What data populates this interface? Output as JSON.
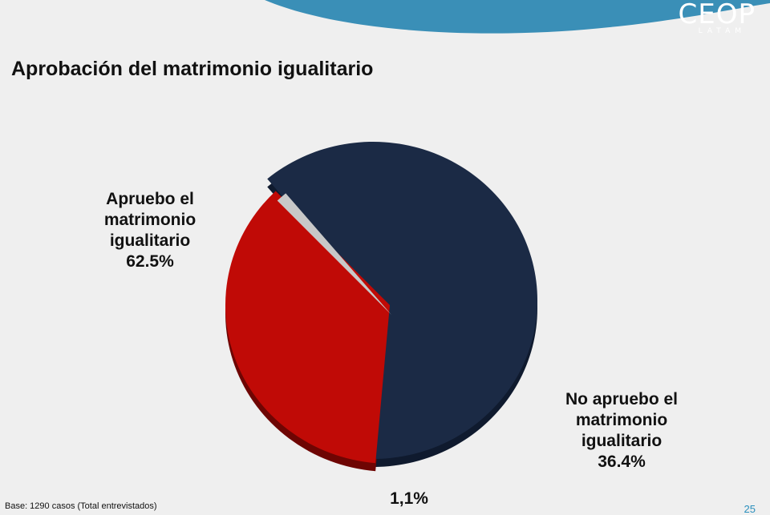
{
  "header": {
    "logo_text": "CEOP",
    "logo_subtext": "LATAM",
    "wave_color": "#3a8fb7"
  },
  "title": "Aprobación del matrimonio igualitario",
  "footer": {
    "base_text": "Base: 1290 casos (Total entrevistados)",
    "page_number": "25"
  },
  "labels": {
    "approve": [
      "Apruebo el",
      "matrimonio",
      "igualitario",
      "62.5%"
    ],
    "disapprove": [
      "No apruebo el",
      "matrimonio",
      "igualitario",
      "36.4%"
    ],
    "other": "1,1%"
  },
  "chart_data": {
    "type": "pie",
    "title": "Aprobación del matrimonio igualitario",
    "exploded": true,
    "style": "3d",
    "slices": [
      {
        "label": "Apruebo el matrimonio igualitario",
        "value": 62.5,
        "color": "#1b2a45",
        "side_color": "#0f1a2e"
      },
      {
        "label": "No apruebo el matrimonio igualitario",
        "value": 36.4,
        "color": "#c00a06",
        "side_color": "#6e0503"
      },
      {
        "label": "",
        "value": 1.1,
        "color": "#c8c8c8",
        "side_color": "#4a4a4a"
      }
    ]
  }
}
